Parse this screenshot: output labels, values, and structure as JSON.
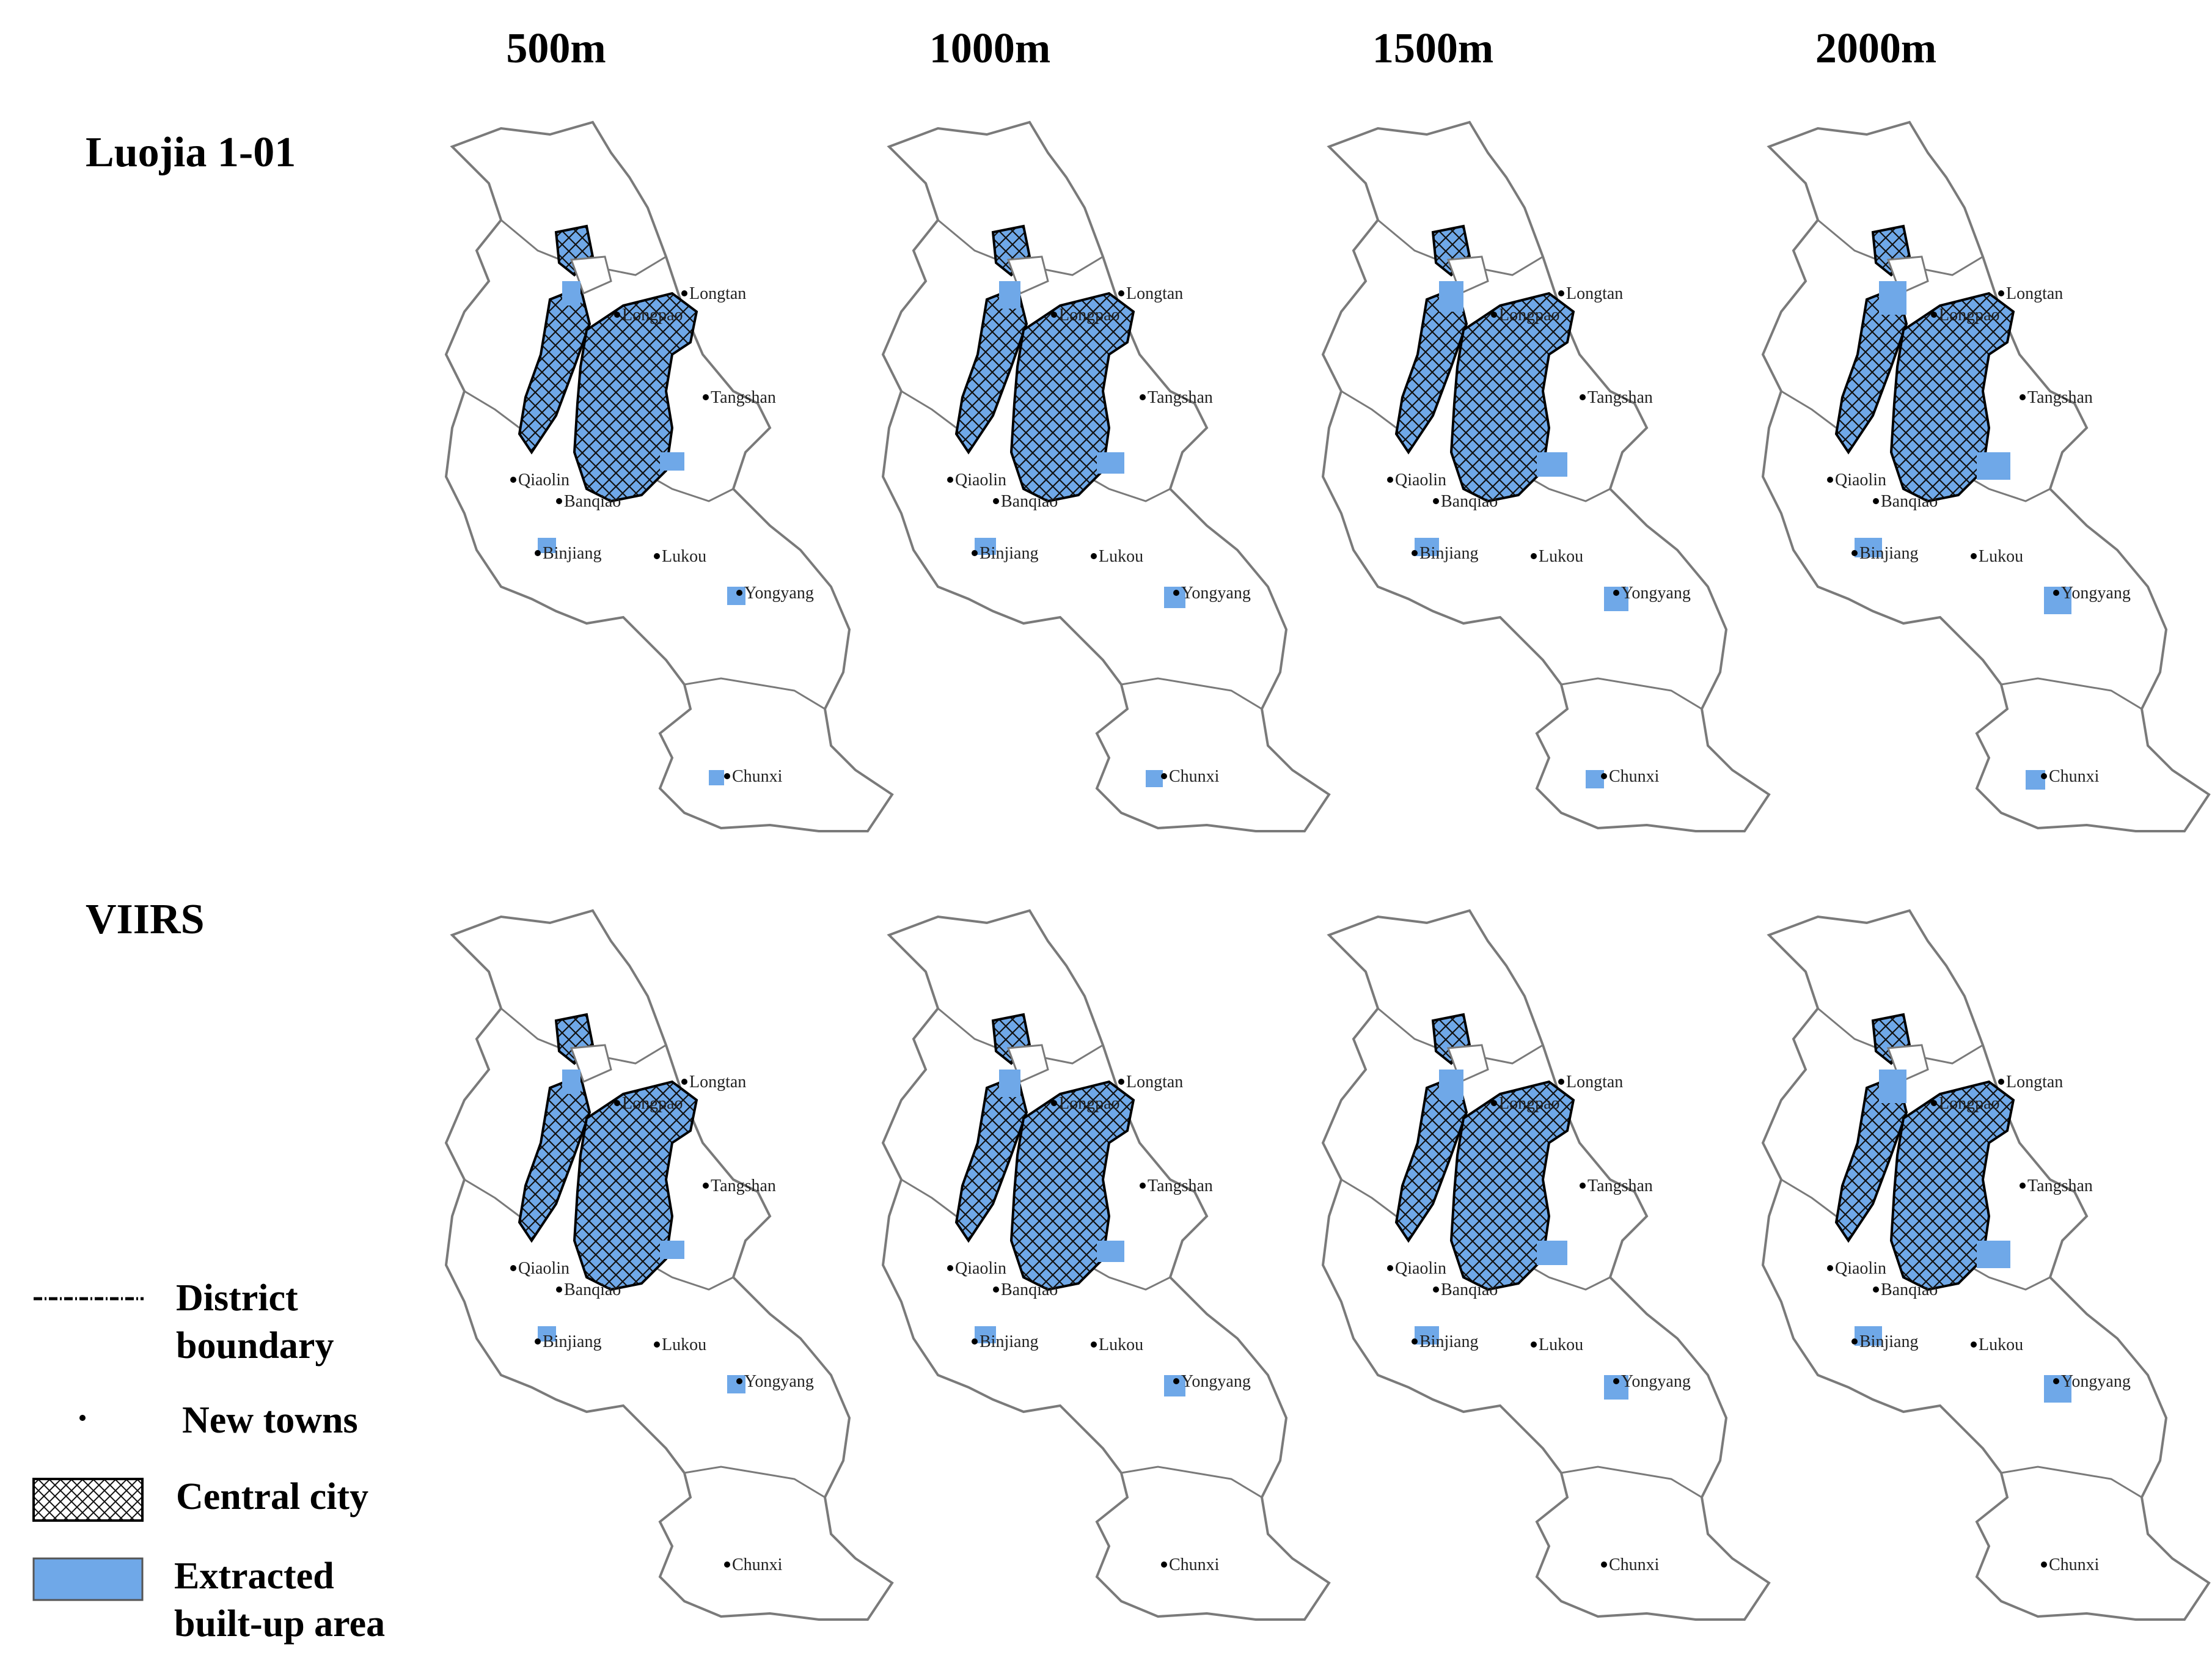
{
  "columns": [
    "500m",
    "1000m",
    "1500m",
    "2000m"
  ],
  "rows": [
    "Luojia 1-01",
    "VIIRS"
  ],
  "towns": [
    "Longtan",
    "Longpao",
    "Tangshan",
    "Qiaolin",
    "Banqiao",
    "Binjiang",
    "Lukou",
    "Yongyang",
    "Chunxi"
  ],
  "legend": {
    "district": "District boundary",
    "towns": "New towns",
    "central": "Central city",
    "builtup": "Extracted built-up area"
  },
  "colors": {
    "builtup": "#6fa8e8",
    "boundary": "#7a7a7a",
    "central_outline": "#000000"
  }
}
